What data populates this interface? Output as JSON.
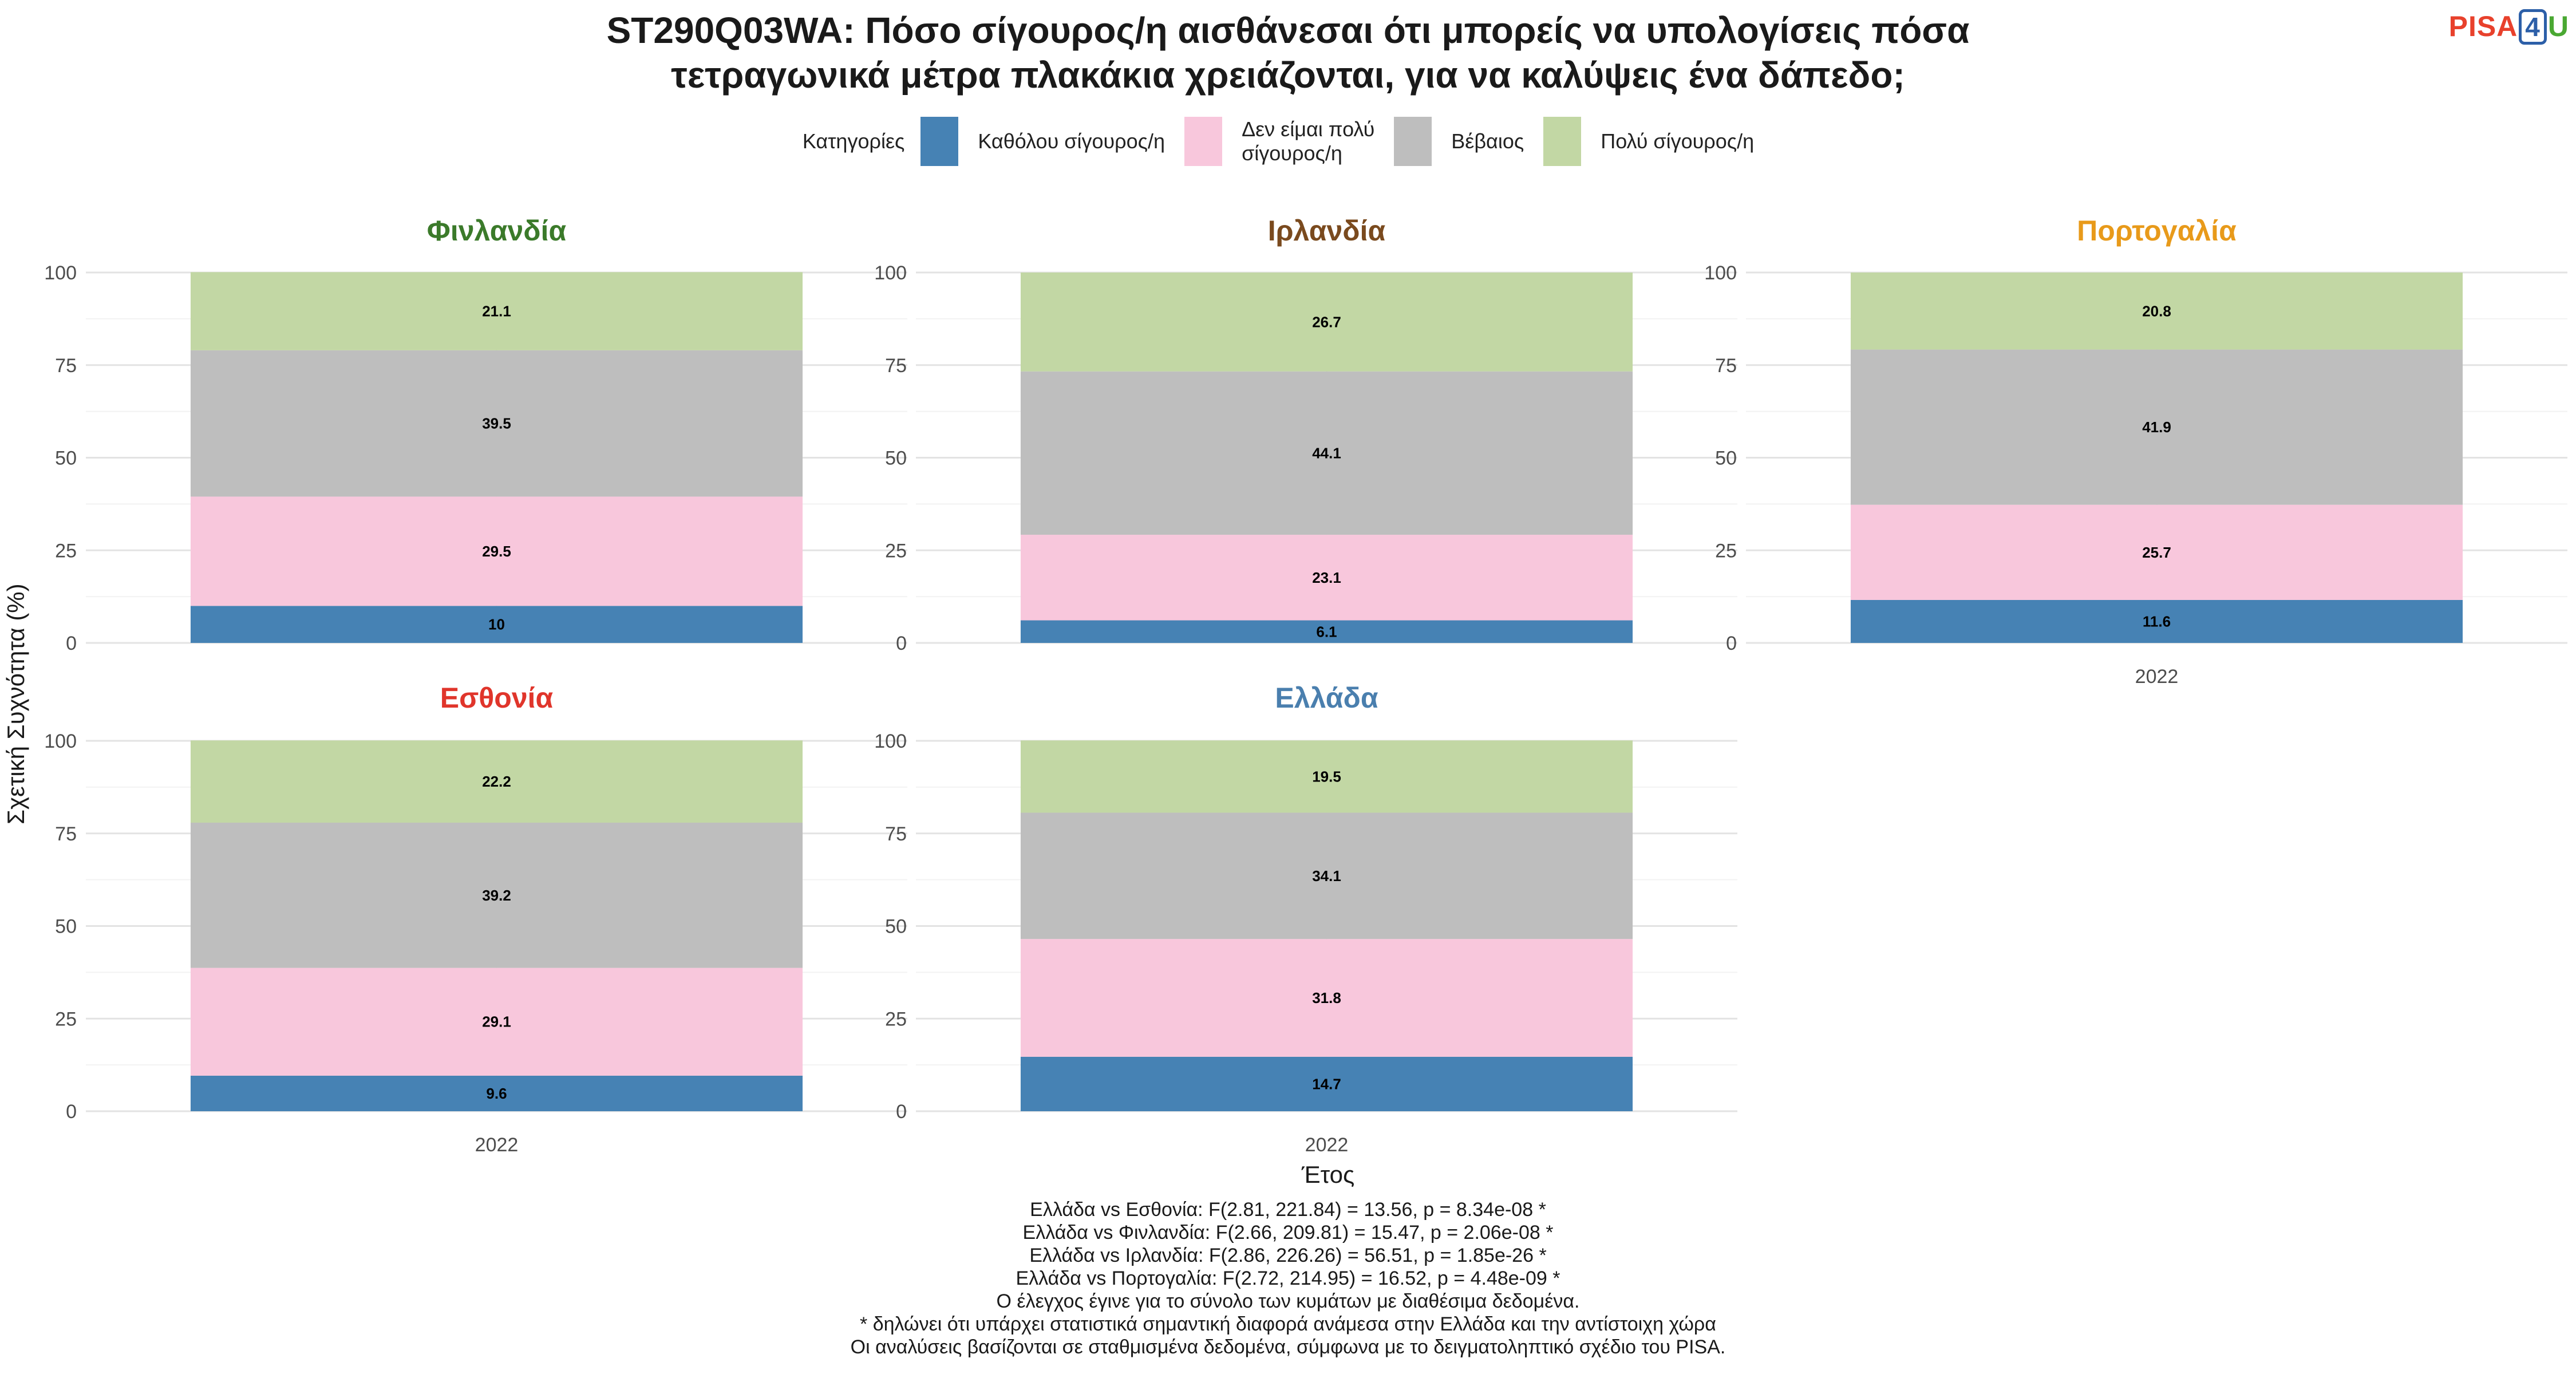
{
  "title_line1": "ST290Q03WA: Πόσο σίγουρος/η αισθάνεσαι ότι μπορείς να υπολογίσεις πόσα",
  "title_line2": "τετραγωνικά μέτρα πλακάκια χρειάζονται, για να καλύψεις ένα δάπεδο;",
  "logo": {
    "part1": "PISA",
    "part2": "4",
    "part3": "U"
  },
  "legend": {
    "title": "Κατηγορίες",
    "items": [
      {
        "label_line1": "Καθόλου σίγουρος/η",
        "label_line2": "",
        "color": "#4682b4"
      },
      {
        "label_line1": "Δεν είμαι πολύ",
        "label_line2": "σίγουρος/η",
        "color": "#f8c7dc"
      },
      {
        "label_line1": "Βέβαιος",
        "label_line2": "",
        "color": "#bebebe"
      },
      {
        "label_line1": "Πολύ σίγουρος/η",
        "label_line2": "",
        "color": "#c2d7a4"
      }
    ]
  },
  "chart_data": {
    "type": "bar",
    "stacked": true,
    "ylabel": "Σχετική Συχνότητα (%)",
    "xlabel": "Έτος",
    "ylim": [
      0,
      100
    ],
    "yticks": [
      0,
      25,
      50,
      75,
      100
    ],
    "grid": true,
    "series_names": [
      "Καθόλου σίγουρος/η",
      "Δεν είμαι πολύ σίγουρος/η",
      "Βέβαιος",
      "Πολύ σίγουρος/η"
    ],
    "colors": [
      "#4682b4",
      "#f8c7dc",
      "#bebebe",
      "#c2d7a4"
    ],
    "panels": [
      {
        "name": "Φινλανδία",
        "title_color": "#3b7a2a",
        "category": "2022",
        "values": [
          10,
          29.5,
          39.5,
          21.1
        ],
        "labels": [
          "10",
          "29.5",
          "39.5",
          "21.1"
        ],
        "show_xtick": false
      },
      {
        "name": "Ιρλανδία",
        "title_color": "#7a4a1e",
        "category": "2022",
        "values": [
          6.1,
          23.1,
          44.1,
          26.7
        ],
        "labels": [
          "6.1",
          "23.1",
          "44.1",
          "26.7"
        ],
        "show_xtick": false
      },
      {
        "name": "Πορτογαλία",
        "title_color": "#e89a1a",
        "category": "2022",
        "values": [
          11.6,
          25.7,
          41.9,
          20.8
        ],
        "labels": [
          "11.6",
          "25.7",
          "41.9",
          "20.8"
        ],
        "show_xtick": true
      },
      {
        "name": "Εσθονία",
        "title_color": "#e0352b",
        "category": "2022",
        "values": [
          9.6,
          29.1,
          39.2,
          22.2
        ],
        "labels": [
          "9.6",
          "29.1",
          "39.2",
          "22.2"
        ],
        "show_xtick": true
      },
      {
        "name": "Ελλάδα",
        "title_color": "#4a7fae",
        "category": "2022",
        "values": [
          14.7,
          31.8,
          34.1,
          19.5
        ],
        "labels": [
          "14.7",
          "31.8",
          "34.1",
          "19.5"
        ],
        "show_xtick": true
      }
    ]
  },
  "notes": [
    "Ελλάδα vs Εσθονία: F(2.81, 221.84) = 13.56, p = 8.34e-08 *",
    "Ελλάδα vs Φινλανδία: F(2.66, 209.81) = 15.47, p = 2.06e-08 *",
    "Ελλάδα vs Ιρλανδία: F(2.86, 226.26) = 56.51, p = 1.85e-26 *",
    "Ελλάδα vs Πορτογαλία: F(2.72, 214.95) = 16.52, p = 4.48e-09 *",
    "Ο έλεγχος έγινε για το σύνολο των κυμάτων με διαθέσιμα δεδομένα.",
    "* δηλώνει ότι υπάρχει στατιστικά σημαντική διαφορά ανάμεσα στην Ελλάδα και την αντίστοιχη χώρα",
    "Οι αναλύσεις βασίζονται σε σταθμισμένα δεδομένα, σύμφωνα με το δειγματοληπτικό σχέδιο του PISA."
  ]
}
